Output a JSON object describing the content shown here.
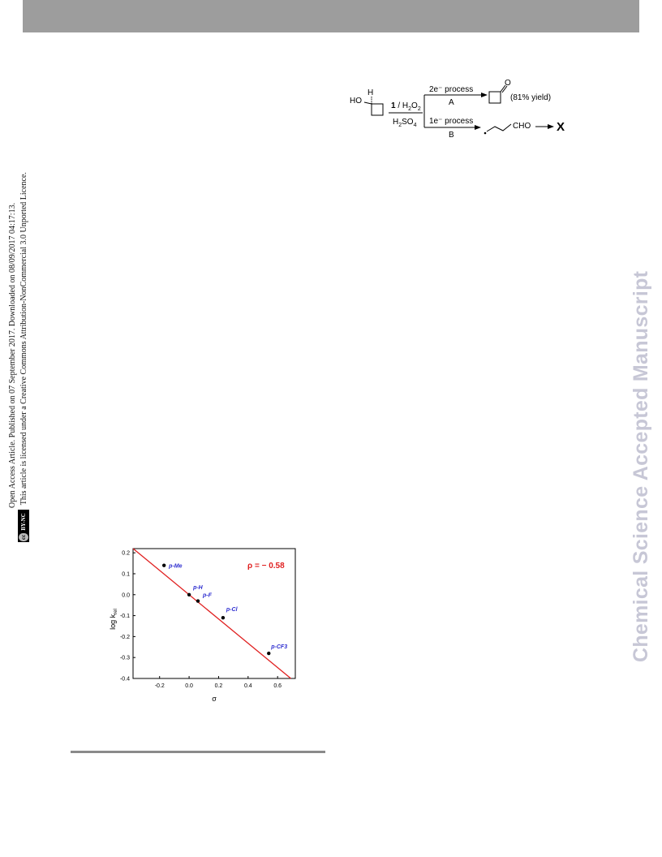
{
  "side_note": {
    "line1": "Open Access Article. Published on 07 September 2017. Downloaded on 08/09/2017 04:17:13.",
    "line2": "This article is licensed under a Creative Commons Attribution-NonCommercial 3.0 Unported Licence.",
    "badge_cc": "cc",
    "badge_text": "BY-NC"
  },
  "watermark": "Chemical Science Accepted Manuscript",
  "scheme": {
    "reactant_label": "HO",
    "reactant_h": "H",
    "reagent_top_num": "1",
    "reagent_top_rest": " / H",
    "reagent_top_sub": "2",
    "reagent_top_o": "O",
    "reagent_top_sub2": "2",
    "reagent_bottom": "H",
    "reagent_bottom_sub": "2",
    "reagent_bottom_so": "SO",
    "reagent_bottom_sub2": "4",
    "path_a_top": "2e⁻ process",
    "path_a_label": "A",
    "path_b_top": "1e⁻ process",
    "path_b_label": "B",
    "product_a_o": "O",
    "product_a_yield": "(81% yield)",
    "product_b_cho": "CHO",
    "product_b_x": "X"
  },
  "chart_data": {
    "type": "scatter",
    "title": "",
    "xlabel": "σ",
    "ylabel": "log k",
    "ylabel_sub": "rel",
    "xlim": [
      -0.38,
      0.72
    ],
    "ylim": [
      -0.4,
      0.22
    ],
    "xticks": [
      -0.2,
      0.0,
      0.2,
      0.4,
      0.6
    ],
    "xtick_labels": [
      "-0.2",
      "0.0",
      "0.2",
      "0.4",
      "0.6"
    ],
    "yticks": [
      0.2,
      0.1,
      0.0,
      -0.1,
      -0.2,
      -0.3,
      -0.4
    ],
    "ytick_labels": [
      "0.2",
      "0.1",
      "0.0",
      "-0.1",
      "-0.2",
      "-0.3",
      "-0.4"
    ],
    "grid": false,
    "points": [
      {
        "label": "p-Me",
        "x": -0.17,
        "y": 0.14
      },
      {
        "label": "p-H",
        "x": 0.0,
        "y": 0.0
      },
      {
        "label": "p-F",
        "x": 0.06,
        "y": -0.03
      },
      {
        "label": "p-Cl",
        "x": 0.23,
        "y": -0.11
      },
      {
        "label": "p-CF3",
        "x": 0.54,
        "y": -0.28
      }
    ],
    "fit": {
      "slope": -0.58,
      "intercept": 0.0,
      "annotation": "ρ = − 0.58"
    },
    "colors": {
      "fit_line": "#e02020",
      "labels": "#2b2bcf",
      "annotation": "#e02020",
      "points": "#000000"
    }
  }
}
